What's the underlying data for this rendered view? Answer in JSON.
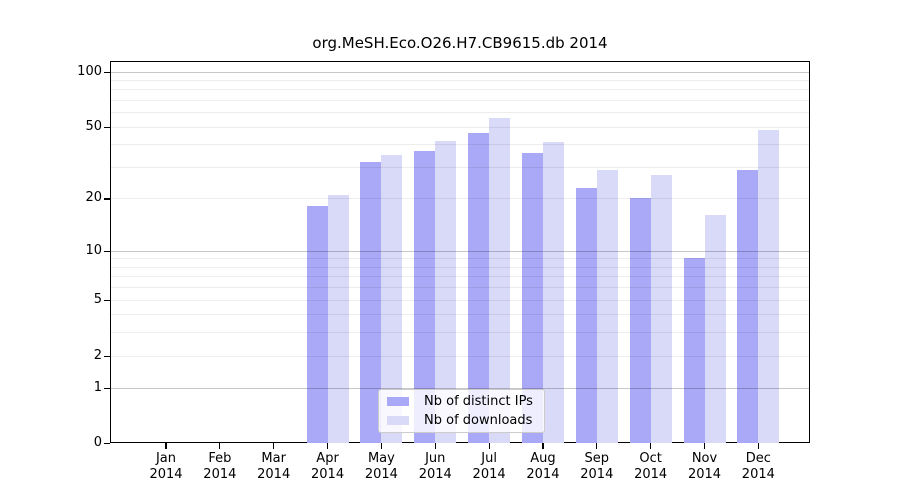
{
  "chart_data": {
    "type": "bar",
    "title": "org.MeSH.Eco.O26.H7.CB9615.db 2014",
    "categories": [
      "Jan",
      "Feb",
      "Mar",
      "Apr",
      "May",
      "Jun",
      "Jul",
      "Aug",
      "Sep",
      "Oct",
      "Nov",
      "Dec"
    ],
    "xlabel_year": "2014",
    "series": [
      {
        "name": "Nb of distinct IPs",
        "color": "#a9a9f7",
        "values": [
          0,
          0,
          0,
          18,
          32,
          37,
          46,
          36,
          23,
          20,
          9,
          29
        ]
      },
      {
        "name": "Nb of downloads",
        "color": "#d9d9f8",
        "values": [
          0,
          0,
          0,
          21,
          35,
          42,
          56,
          41,
          29,
          27,
          16,
          48
        ]
      }
    ],
    "yscale": "log1p",
    "yticks": [
      0,
      1,
      2,
      5,
      10,
      20,
      50,
      100
    ],
    "ytick_major_gridlines": [
      1,
      10,
      100
    ],
    "ytick_minor_gridlines": [
      2,
      3,
      4,
      5,
      6,
      7,
      8,
      9,
      20,
      30,
      40,
      50,
      60,
      70,
      80,
      90
    ],
    "ylim": [
      0,
      114
    ],
    "xlabel": "",
    "ylabel": "",
    "grid": "on",
    "legend_position": "lower center",
    "axis_color": "#000000",
    "background_color": "#ffffff"
  }
}
